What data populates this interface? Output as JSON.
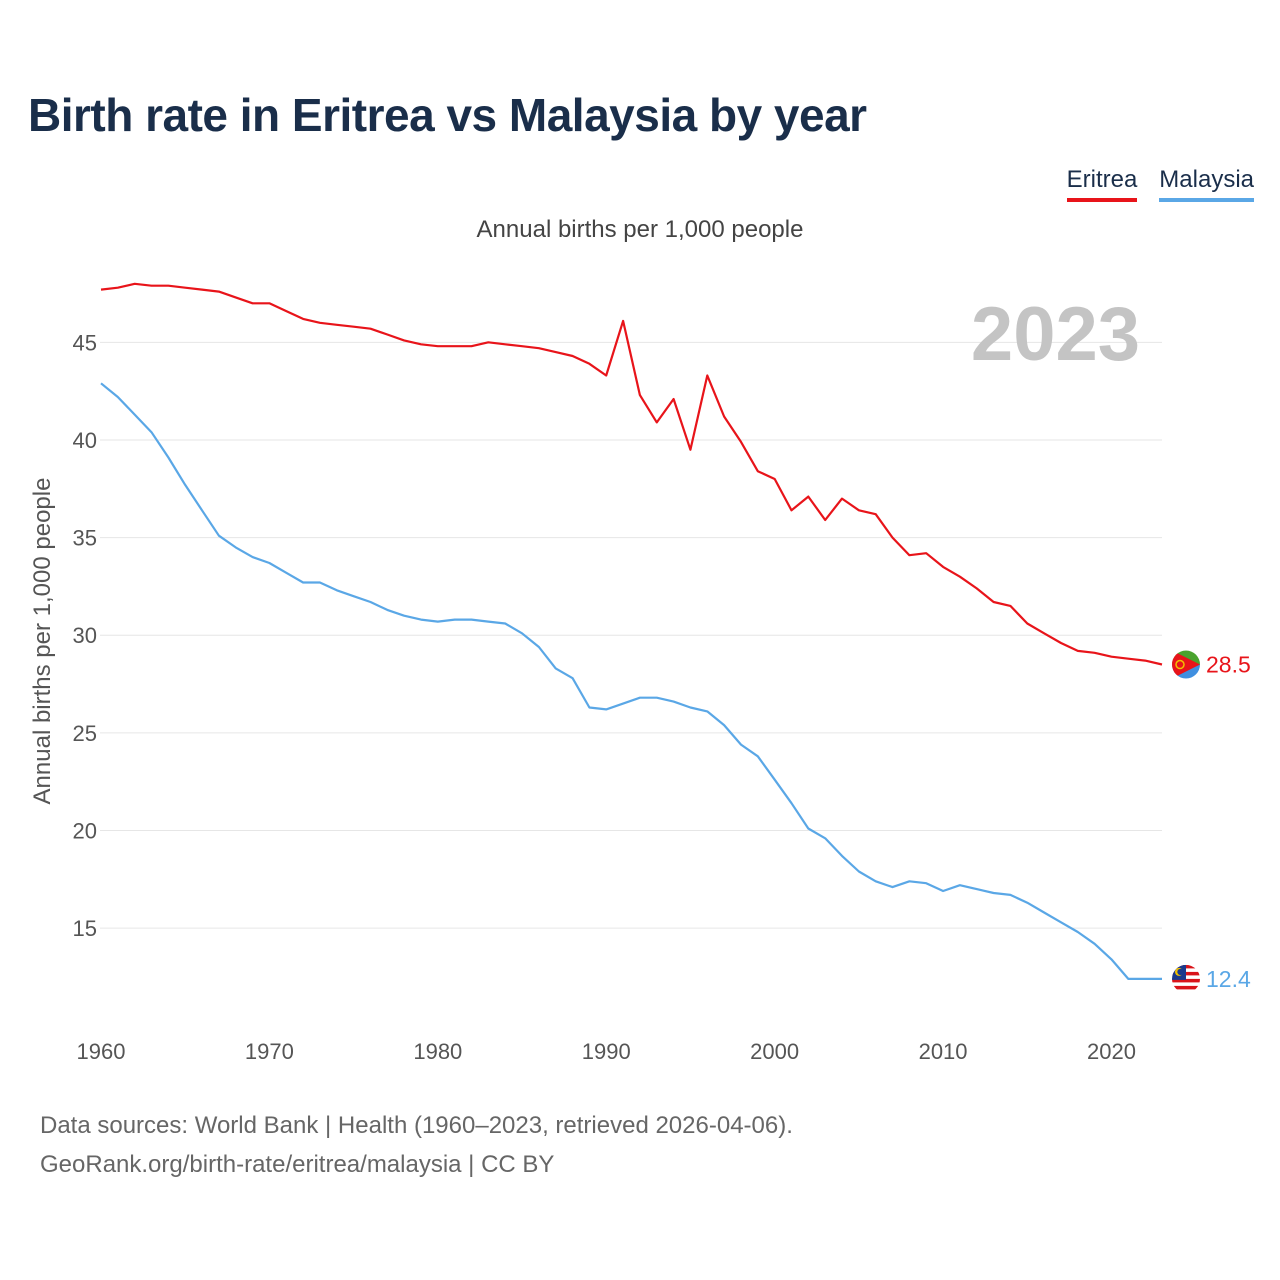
{
  "title": "Birth rate in Eritrea vs Malaysia by year",
  "subtitle": "Annual births per 1,000 people",
  "legend": [
    "Eritrea",
    "Malaysia"
  ],
  "year_watermark": "2023",
  "footer": {
    "line1": "Data sources: World Bank | Health (1960–2023, retrieved 2026-04-06).",
    "line2": "GeoRank.org/birth-rate/eritrea/malaysia | CC BY"
  },
  "colors": {
    "eritrea": "#e8141a",
    "malaysia": "#5aa7e6",
    "grid": "#e6e6e6",
    "axis_text": "#555555"
  },
  "chart_data": {
    "type": "line",
    "title": "Birth rate in Eritrea vs Malaysia by year",
    "ylabel": "Annual births per 1,000 people",
    "xlabel": "",
    "xlim": [
      1960,
      2023
    ],
    "ylim": [
      10.5,
      48.5
    ],
    "x_ticks": [
      1960,
      1970,
      1980,
      1990,
      2000,
      2010,
      2020
    ],
    "y_ticks": [
      15,
      20,
      25,
      30,
      35,
      40,
      45
    ],
    "grid": true,
    "x": [
      1960,
      1961,
      1962,
      1963,
      1964,
      1965,
      1966,
      1967,
      1968,
      1969,
      1970,
      1971,
      1972,
      1973,
      1974,
      1975,
      1976,
      1977,
      1978,
      1979,
      1980,
      1981,
      1982,
      1983,
      1984,
      1985,
      1986,
      1987,
      1988,
      1989,
      1990,
      1991,
      1992,
      1993,
      1994,
      1995,
      1996,
      1997,
      1998,
      1999,
      2000,
      2001,
      2002,
      2003,
      2004,
      2005,
      2006,
      2007,
      2008,
      2009,
      2010,
      2011,
      2012,
      2013,
      2014,
      2015,
      2016,
      2017,
      2018,
      2019,
      2020,
      2021,
      2022,
      2023
    ],
    "series": [
      {
        "name": "Eritrea",
        "end_label": "28.5",
        "values": [
          47.7,
          47.8,
          48.0,
          47.9,
          47.9,
          47.8,
          47.7,
          47.6,
          47.3,
          47.0,
          47.0,
          46.6,
          46.2,
          46.0,
          45.9,
          45.8,
          45.7,
          45.4,
          45.1,
          44.9,
          44.8,
          44.8,
          44.8,
          45.0,
          44.9,
          44.8,
          44.7,
          44.5,
          44.3,
          43.9,
          43.3,
          46.1,
          42.3,
          40.9,
          42.1,
          39.5,
          43.3,
          41.2,
          39.9,
          38.4,
          38.0,
          36.4,
          37.1,
          35.9,
          37.0,
          36.4,
          36.2,
          35.0,
          34.1,
          34.2,
          33.5,
          33.0,
          32.4,
          31.7,
          31.5,
          30.6,
          30.1,
          29.6,
          29.2,
          29.1,
          28.9,
          28.8,
          28.7,
          28.5
        ]
      },
      {
        "name": "Malaysia",
        "end_label": "12.4",
        "values": [
          42.9,
          42.2,
          41.3,
          40.4,
          39.1,
          37.7,
          36.4,
          35.1,
          34.5,
          34.0,
          33.7,
          33.2,
          32.7,
          32.7,
          32.3,
          32.0,
          31.7,
          31.3,
          31.0,
          30.8,
          30.7,
          30.8,
          30.8,
          30.7,
          30.6,
          30.1,
          29.4,
          28.3,
          27.8,
          26.3,
          26.2,
          26.5,
          26.8,
          26.8,
          26.6,
          26.3,
          26.1,
          25.4,
          24.4,
          23.8,
          22.6,
          21.4,
          20.1,
          19.6,
          18.7,
          17.9,
          17.4,
          17.1,
          17.4,
          17.3,
          16.9,
          17.2,
          17.0,
          16.8,
          16.7,
          16.3,
          15.8,
          15.3,
          14.8,
          14.2,
          13.4,
          12.4,
          12.4,
          12.4
        ]
      }
    ]
  }
}
